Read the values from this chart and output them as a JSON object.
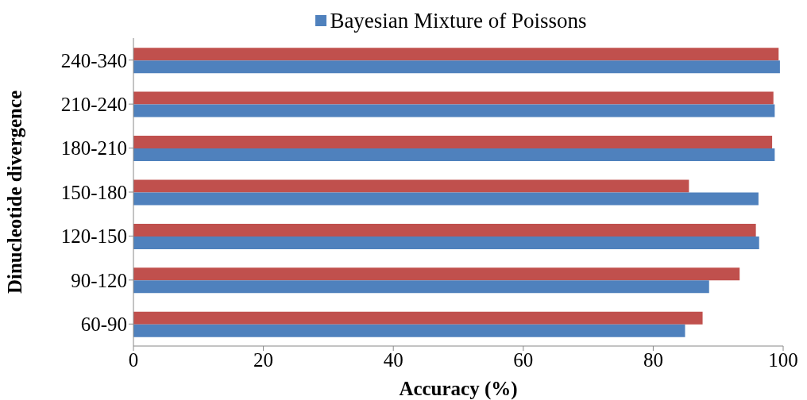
{
  "chart_data": {
    "type": "bar",
    "orientation": "horizontal",
    "xlabel": "Accuracy (%)",
    "ylabel": "Dinucleotide divergence",
    "categories": [
      "240-340",
      "210-240",
      "180-210",
      "150-180",
      "120-150",
      "90-120",
      "60-90"
    ],
    "series": [
      {
        "color": "#c0504d",
        "values": [
          99.3,
          98.5,
          98.3,
          85.5,
          95.8,
          93.3,
          87.6
        ]
      },
      {
        "name": "Bayesian Mixture of Poissons",
        "color": "#4f81bd",
        "values": [
          99.5,
          98.7,
          98.7,
          96.2,
          96.3,
          88.6,
          84.9
        ]
      }
    ],
    "xlim": [
      0,
      100
    ],
    "xticks": [
      0,
      20,
      40,
      60,
      80,
      100
    ],
    "grid": false,
    "legend": "top"
  }
}
